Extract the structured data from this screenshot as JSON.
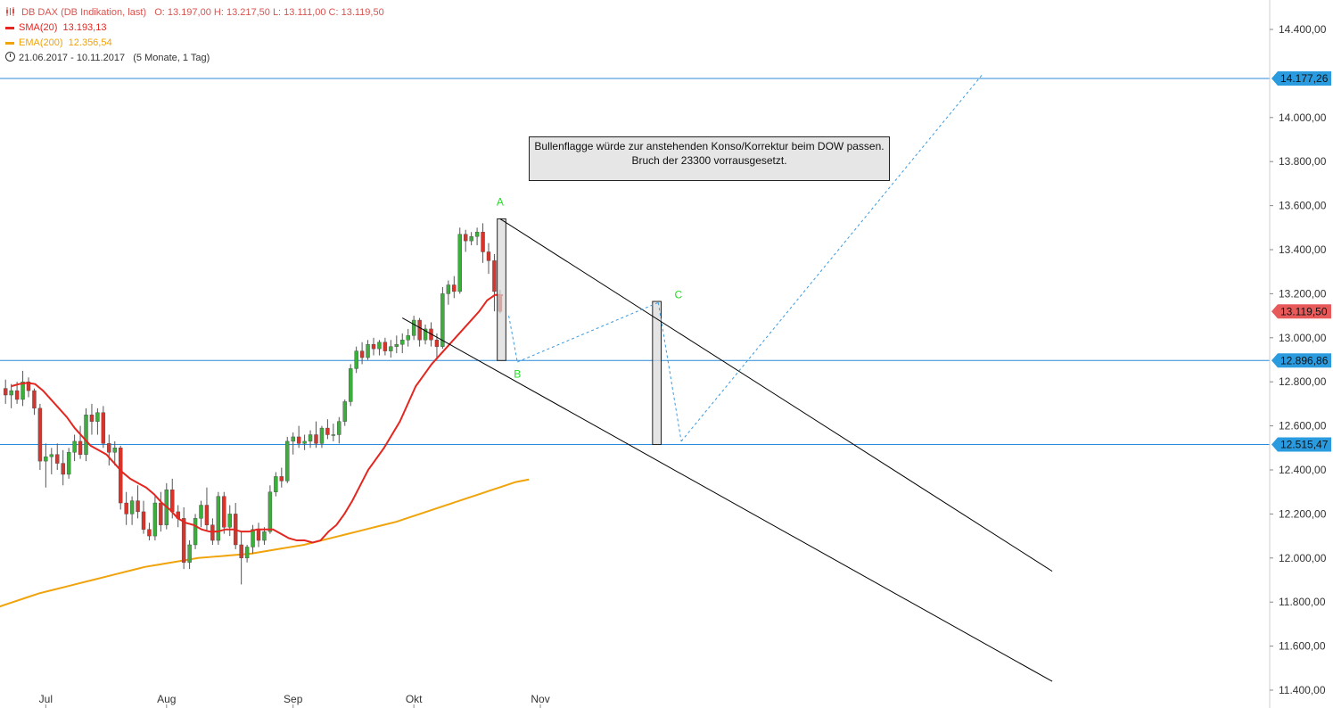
{
  "legend": {
    "title": "DB DAX (DB Indikation, last)",
    "ohlc": "O: 13.197,00   H: 13.217,50   L: 13.111,00   C: 13.119,50",
    "sma_label": "SMA(20)",
    "sma_value": "13.193,13",
    "ema_label": "EMA(200)",
    "ema_value": "12.356,54",
    "date_range": "21.06.2017 - 10.11.2017",
    "period": "(5 Monate, 1 Tag)"
  },
  "annotation": {
    "line1": "Bullenflagge würde zur anstehenden Konso/Korrektur beim DOW passen.",
    "line2": "Bruch der 23300 vorrausgesetzt."
  },
  "colors": {
    "up": "#3cae3c",
    "down": "#d9342b",
    "sma": "#e3261f",
    "ema": "#f0a30a",
    "level_line": "#2b8ad9",
    "projection": "#3a9ae0",
    "channel": "#000000",
    "price_badge": "#e85a5a",
    "level_badge": "#2b9be0",
    "wave_label": "#22dd22"
  },
  "chart_data": {
    "type": "candlestick",
    "y_axis": {
      "min": 11400,
      "max": 14500,
      "ticks": [
        "11.400,00",
        "11.600,00",
        "11.800,00",
        "12.000,00",
        "12.200,00",
        "12.400,00",
        "12.600,00",
        "12.800,00",
        "13.000,00",
        "13.200,00",
        "13.400,00",
        "13.600,00",
        "13.800,00",
        "14.000,00",
        "14.400,00"
      ],
      "tick_values": [
        11400,
        11600,
        11800,
        12000,
        12200,
        12400,
        12600,
        12800,
        13000,
        13200,
        13400,
        13600,
        13800,
        14000,
        14400
      ]
    },
    "x_axis": {
      "labels": [
        "Jul",
        "Aug",
        "Sep",
        "Okt",
        "Nov"
      ],
      "label_index": [
        7,
        28,
        50,
        71,
        93
      ]
    },
    "candles_ohlc": [
      [
        12770,
        12810,
        12700,
        12740
      ],
      [
        12740,
        12790,
        12680,
        12760
      ],
      [
        12760,
        12800,
        12700,
        12720
      ],
      [
        12720,
        12850,
        12690,
        12800
      ],
      [
        12800,
        12820,
        12730,
        12760
      ],
      [
        12760,
        12770,
        12650,
        12680
      ],
      [
        12680,
        12700,
        12400,
        12440
      ],
      [
        12440,
        12520,
        12320,
        12460
      ],
      [
        12460,
        12500,
        12380,
        12470
      ],
      [
        12470,
        12520,
        12400,
        12430
      ],
      [
        12430,
        12490,
        12330,
        12380
      ],
      [
        12380,
        12500,
        12360,
        12480
      ],
      [
        12480,
        12560,
        12440,
        12530
      ],
      [
        12530,
        12600,
        12450,
        12470
      ],
      [
        12470,
        12680,
        12440,
        12650
      ],
      [
        12650,
        12700,
        12560,
        12620
      ],
      [
        12620,
        12680,
        12560,
        12660
      ],
      [
        12660,
        12690,
        12500,
        12520
      ],
      [
        12520,
        12560,
        12420,
        12480
      ],
      [
        12480,
        12530,
        12420,
        12500
      ],
      [
        12500,
        12510,
        12220,
        12250
      ],
      [
        12250,
        12300,
        12150,
        12200
      ],
      [
        12200,
        12280,
        12150,
        12260
      ],
      [
        12260,
        12330,
        12180,
        12210
      ],
      [
        12210,
        12260,
        12110,
        12130
      ],
      [
        12130,
        12160,
        12080,
        12100
      ],
      [
        12100,
        12280,
        12080,
        12250
      ],
      [
        12250,
        12300,
        12120,
        12150
      ],
      [
        12150,
        12340,
        12130,
        12310
      ],
      [
        12310,
        12360,
        12180,
        12210
      ],
      [
        12210,
        12240,
        12140,
        12180
      ],
      [
        12180,
        12230,
        11950,
        11980
      ],
      [
        11980,
        12080,
        11950,
        12060
      ],
      [
        12060,
        12200,
        12040,
        12180
      ],
      [
        12180,
        12260,
        12140,
        12240
      ],
      [
        12240,
        12320,
        12120,
        12150
      ],
      [
        12150,
        12180,
        12060,
        12080
      ],
      [
        12080,
        12300,
        12060,
        12280
      ],
      [
        12280,
        12300,
        12110,
        12140
      ],
      [
        12140,
        12240,
        12100,
        12200
      ],
      [
        12200,
        12250,
        12040,
        12060
      ],
      [
        12060,
        12120,
        11880,
        12000
      ],
      [
        12000,
        12060,
        11980,
        12050
      ],
      [
        12050,
        12150,
        12020,
        12130
      ],
      [
        12130,
        12160,
        12050,
        12080
      ],
      [
        12080,
        12140,
        12060,
        12120
      ],
      [
        12120,
        12330,
        12110,
        12300
      ],
      [
        12300,
        12390,
        12280,
        12370
      ],
      [
        12370,
        12410,
        12320,
        12350
      ],
      [
        12350,
        12550,
        12340,
        12530
      ],
      [
        12530,
        12570,
        12470,
        12550
      ],
      [
        12550,
        12600,
        12500,
        12520
      ],
      [
        12520,
        12560,
        12490,
        12530
      ],
      [
        12530,
        12580,
        12500,
        12560
      ],
      [
        12560,
        12620,
        12500,
        12520
      ],
      [
        12520,
        12600,
        12500,
        12590
      ],
      [
        12590,
        12630,
        12540,
        12560
      ],
      [
        12560,
        12610,
        12530,
        12560
      ],
      [
        12560,
        12640,
        12520,
        12620
      ],
      [
        12620,
        12720,
        12600,
        12710
      ],
      [
        12710,
        12880,
        12690,
        12860
      ],
      [
        12860,
        12960,
        12840,
        12940
      ],
      [
        12940,
        12980,
        12880,
        12910
      ],
      [
        12910,
        12990,
        12900,
        12970
      ],
      [
        12970,
        13000,
        12920,
        12950
      ],
      [
        12950,
        12990,
        12920,
        12980
      ],
      [
        12980,
        13000,
        12920,
        12940
      ],
      [
        12940,
        12990,
        12910,
        12960
      ],
      [
        12960,
        13010,
        12930,
        12970
      ],
      [
        12970,
        13020,
        12930,
        12990
      ],
      [
        12990,
        13040,
        12960,
        13010
      ],
      [
        13010,
        13100,
        12990,
        13080
      ],
      [
        13080,
        13090,
        12960,
        12990
      ],
      [
        12990,
        13060,
        12970,
        13040
      ],
      [
        13040,
        13070,
        12960,
        12990
      ],
      [
        12990,
        13020,
        12900,
        12960
      ],
      [
        12960,
        13230,
        12950,
        13200
      ],
      [
        13200,
        13260,
        13150,
        13240
      ],
      [
        13240,
        13280,
        13180,
        13210
      ],
      [
        13210,
        13500,
        13200,
        13470
      ],
      [
        13470,
        13490,
        13390,
        13440
      ],
      [
        13440,
        13480,
        13420,
        13460
      ],
      [
        13460,
        13500,
        13420,
        13480
      ],
      [
        13480,
        13520,
        13340,
        13390
      ],
      [
        13390,
        13430,
        13290,
        13350
      ],
      [
        13350,
        13380,
        13120,
        13210
      ],
      [
        13197,
        13217.5,
        13111,
        13119.5
      ]
    ],
    "x_start_index": -0.5,
    "sma20_values": [
      12780,
      12790,
      12795,
      12790,
      12760,
      12720,
      12680,
      12640,
      12590,
      12550,
      12510,
      12490,
      12470,
      12430,
      12390,
      12360,
      12340,
      12320,
      12290,
      12250,
      12220,
      12180,
      12160,
      12150,
      12130,
      12120,
      12120,
      12130,
      12130,
      12120,
      12120,
      12130,
      12130,
      12130,
      12110,
      12090,
      12080,
      12080,
      12070,
      12080,
      12120,
      12150,
      12200,
      12260,
      12330,
      12400,
      12450,
      12500,
      12560,
      12620,
      12700,
      12780,
      12830,
      12880,
      12920,
      12960,
      13000,
      13040,
      13080,
      13120,
      13170,
      13195,
      13193.13
    ],
    "sma20_start_index": 0.5,
    "ema200_values": [
      11780,
      11800,
      11820,
      11840,
      11855,
      11870,
      11885,
      11900,
      11915,
      11930,
      11945,
      11960,
      11970,
      11980,
      11990,
      12000,
      12005,
      12010,
      12015,
      12020,
      12030,
      12040,
      12050,
      12060,
      12075,
      12090,
      12105,
      12120,
      12135,
      12150,
      12165,
      12185,
      12205,
      12225,
      12245,
      12265,
      12285,
      12305,
      12325,
      12345,
      12356.54
    ],
    "ema200_index_step": 2.3,
    "ema200_start_index": -1,
    "horizontal_levels": [
      {
        "value": 14177.26,
        "label": "14.177,26"
      },
      {
        "value": 12896.86,
        "label": "12.896,86"
      },
      {
        "value": 12515.47,
        "label": "12.515,47"
      }
    ],
    "last_price": {
      "value": 13119.5,
      "label": "13.119,50"
    },
    "channel_lines": [
      {
        "x1": 86,
        "y1": 13540,
        "x2": 182,
        "y2": 11940
      },
      {
        "x1": 69,
        "y1": 13090,
        "x2": 182,
        "y2": 11440
      }
    ],
    "projection_path": [
      [
        87.5,
        13100
      ],
      [
        89,
        12890
      ],
      [
        113.5,
        13160
      ],
      [
        117.5,
        12530
      ],
      [
        170,
        14200
      ]
    ],
    "boxes": [
      {
        "x1": 85.5,
        "x2": 87,
        "low": 12896.86,
        "high": 13540
      },
      {
        "x1": 112.5,
        "x2": 114,
        "low": 12515.47,
        "high": 13165
      }
    ],
    "wave_labels": [
      {
        "text": "A",
        "x": 86,
        "value": 13600
      },
      {
        "text": "B",
        "x": 89,
        "value": 12820
      },
      {
        "text": "C",
        "x": 117,
        "value": 13180
      }
    ]
  }
}
